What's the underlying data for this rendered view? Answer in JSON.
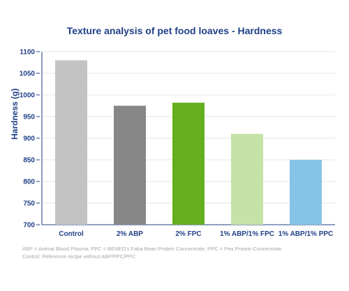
{
  "chart_data": {
    "type": "bar",
    "title": "Texture analysis of pet food loaves - Hardness",
    "xlabel": "",
    "ylabel": "Hardness (g)",
    "categories": [
      "Control",
      "2% ABP",
      "2% FPC",
      "1% ABP/1% FPC",
      "1% ABP/1% PPC"
    ],
    "values": [
      1080,
      975,
      982,
      910,
      850
    ],
    "colors": [
      "#c3c3c3",
      "#878787",
      "#65ae1e",
      "#c5e2a8",
      "#86c3e6"
    ],
    "ylim": [
      700,
      1100
    ],
    "yticks": [
      700,
      750,
      800,
      850,
      900,
      950,
      1000,
      1050,
      1100
    ],
    "grid": true
  },
  "footnotes": {
    "line1": "ABP = Animal Blood Plasma; FPC = BENEO's Faba Bean Protein Concentrate; PPC = Pea Protein Concentrate",
    "line2": "Control: Reference recipe without ABP/FPC/PPC"
  }
}
